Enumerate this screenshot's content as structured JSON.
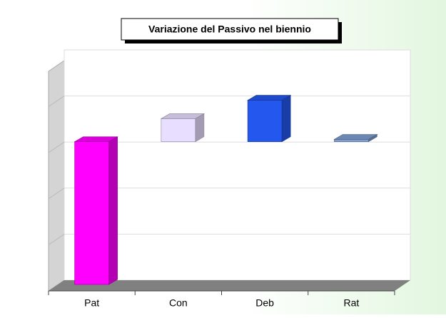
{
  "chart_data": {
    "type": "floating_bar_3d",
    "title": "Variazione del Passivo nel biennio",
    "categories": [
      "Pat",
      "Con",
      "Deb",
      "Rat"
    ],
    "values": [
      [
        0,
        3.1
      ],
      [
        3.1,
        3.6
      ],
      [
        3.1,
        4.0
      ],
      [
        3.1,
        3.15
      ]
    ],
    "colors": [
      "#ff00ff",
      "#e8deff",
      "#2457ee",
      "#7f9fd0"
    ],
    "ylim": [
      0,
      5
    ],
    "yticks": [
      0,
      1,
      2,
      3,
      4,
      5
    ],
    "grid": true,
    "tick_labels": false
  }
}
